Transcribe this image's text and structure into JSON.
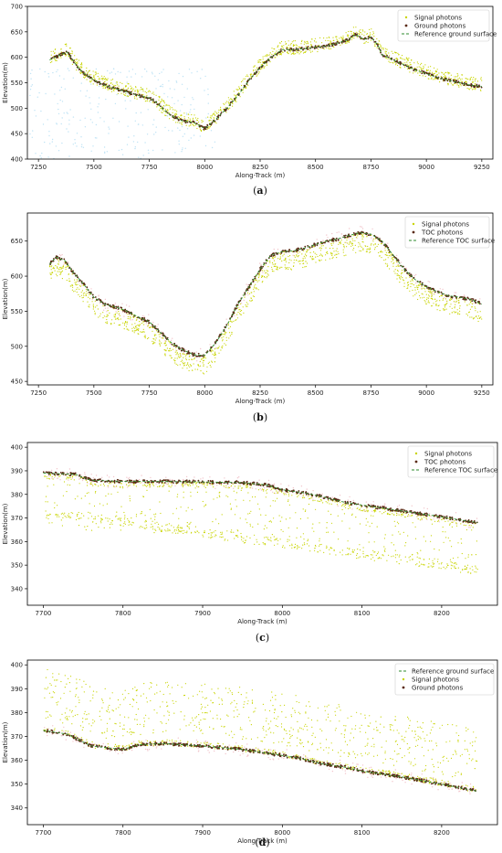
{
  "chart_data": [
    {
      "panel": "(a)",
      "panel_letter": "a",
      "type": "scatter",
      "xlabel": "Along-Track (m)",
      "ylabel": "Elevation(m)",
      "xlim": [
        7200,
        9300
      ],
      "ylim": [
        400,
        700
      ],
      "xticks": [
        7250,
        7500,
        7750,
        8000,
        8250,
        8500,
        8750,
        9000,
        9250
      ],
      "yticks": [
        400,
        450,
        500,
        550,
        600,
        650,
        700
      ],
      "legend_position": "top-right",
      "legend": [
        "Signal photons",
        "Ground photons",
        "Reference ground surface"
      ],
      "colors": {
        "signal": "#c8d400",
        "ground": "#5a2a14",
        "reference": "#2e8b2e",
        "noise": "#bfe3f5"
      },
      "surface": {
        "x": [
          7300,
          7350,
          7380,
          7420,
          7450,
          7500,
          7550,
          7600,
          7650,
          7700,
          7750,
          7780,
          7820,
          7850,
          7900,
          7950,
          8000,
          8050,
          8100,
          8150,
          8200,
          8250,
          8300,
          8350,
          8400,
          8450,
          8500,
          8550,
          8600,
          8650,
          8680,
          8720,
          8750,
          8780,
          8800,
          8850,
          8900,
          8950,
          9000,
          9050,
          9100,
          9150,
          9200,
          9250
        ],
        "y": [
          595,
          605,
          610,
          585,
          570,
          555,
          545,
          538,
          532,
          525,
          520,
          512,
          495,
          485,
          475,
          472,
          460,
          478,
          500,
          525,
          555,
          580,
          600,
          615,
          615,
          617,
          620,
          622,
          628,
          635,
          645,
          635,
          640,
          625,
          605,
          595,
          585,
          575,
          568,
          560,
          555,
          550,
          545,
          543
        ]
      }
    },
    {
      "panel": "(b)",
      "panel_letter": "b",
      "type": "scatter",
      "xlabel": "Along-Track (m)",
      "ylabel": "Elevation(m)",
      "xlim": [
        7200,
        9300
      ],
      "ylim": [
        445,
        690
      ],
      "xticks": [
        7250,
        7500,
        7750,
        8000,
        8250,
        8500,
        8750,
        9000,
        9250
      ],
      "yticks": [
        450,
        500,
        550,
        600,
        650
      ],
      "legend_position": "top-right",
      "legend": [
        "Signal photons",
        "TOC photons",
        "Reference TOC surface"
      ],
      "colors": {
        "signal": "#c8d400",
        "ground": "#5a2a14",
        "reference": "#2e8b2e",
        "noise": "#f2c6cc"
      },
      "surface": {
        "x": [
          7300,
          7330,
          7370,
          7400,
          7450,
          7500,
          7550,
          7600,
          7650,
          7700,
          7750,
          7800,
          7850,
          7900,
          7950,
          8000,
          8050,
          8100,
          8150,
          8200,
          8250,
          8300,
          8350,
          8400,
          8450,
          8500,
          8550,
          8600,
          8650,
          8700,
          8750,
          8800,
          8850,
          8900,
          8950,
          9000,
          9050,
          9100,
          9150,
          9200,
          9250
        ],
        "y": [
          617,
          627,
          622,
          608,
          590,
          570,
          560,
          556,
          550,
          542,
          535,
          520,
          505,
          495,
          488,
          487,
          505,
          530,
          560,
          585,
          610,
          630,
          635,
          636,
          640,
          645,
          650,
          653,
          658,
          662,
          660,
          650,
          630,
          610,
          595,
          585,
          578,
          572,
          570,
          567,
          560
        ]
      }
    },
    {
      "panel": "(c)",
      "panel_letter": "c",
      "type": "scatter",
      "xlabel": "Along-Track (m)",
      "ylabel": "Elevation(m)",
      "xlim": [
        7680,
        8270
      ],
      "ylim": [
        333,
        402
      ],
      "xticks": [
        7700,
        7800,
        7900,
        8000,
        8100,
        8200
      ],
      "yticks": [
        340,
        350,
        360,
        370,
        380,
        390,
        400
      ],
      "legend_position": "top-right",
      "legend": [
        "Signal photons",
        "TOC photons",
        "Reference TOC surface"
      ],
      "colors": {
        "signal": "#c8d400",
        "ground": "#5a2a14",
        "reference": "#2e8b2e",
        "noise": "#f2c6cc"
      },
      "surface": {
        "x": [
          7700,
          7740,
          7760,
          7800,
          7850,
          7900,
          7950,
          7980,
          8000,
          8030,
          8050,
          8080,
          8100,
          8150,
          8200,
          8245
        ],
        "y": [
          389,
          388.5,
          386,
          385.5,
          385.5,
          385.3,
          385,
          384,
          382,
          380.5,
          379,
          376.5,
          375.5,
          373,
          370.5,
          368
        ]
      }
    },
    {
      "panel": "(d)",
      "panel_letter": "d",
      "type": "scatter",
      "xlabel": "Along-Track (m)",
      "ylabel": "Elevation(m)",
      "xlim": [
        7680,
        8270
      ],
      "ylim": [
        333,
        402
      ],
      "xticks": [
        7700,
        7800,
        7900,
        8000,
        8100,
        8200
      ],
      "yticks": [
        340,
        350,
        360,
        370,
        380,
        390,
        400
      ],
      "legend_position": "top-right",
      "legend": [
        "Reference ground surface",
        "Signal photons",
        "Ground photons"
      ],
      "colors": {
        "signal": "#c8d400",
        "ground": "#5a2a14",
        "reference": "#2e8b2e",
        "noise": "#f2c6cc"
      },
      "surface": {
        "x": [
          7700,
          7730,
          7760,
          7800,
          7820,
          7850,
          7900,
          7950,
          8000,
          8020,
          8050,
          8080,
          8100,
          8150,
          8200,
          8245
        ],
        "y": [
          372.5,
          371,
          366,
          364.5,
          366.5,
          367,
          366,
          364.5,
          362,
          361,
          358.5,
          357,
          355.5,
          353,
          350,
          347
        ]
      }
    }
  ]
}
